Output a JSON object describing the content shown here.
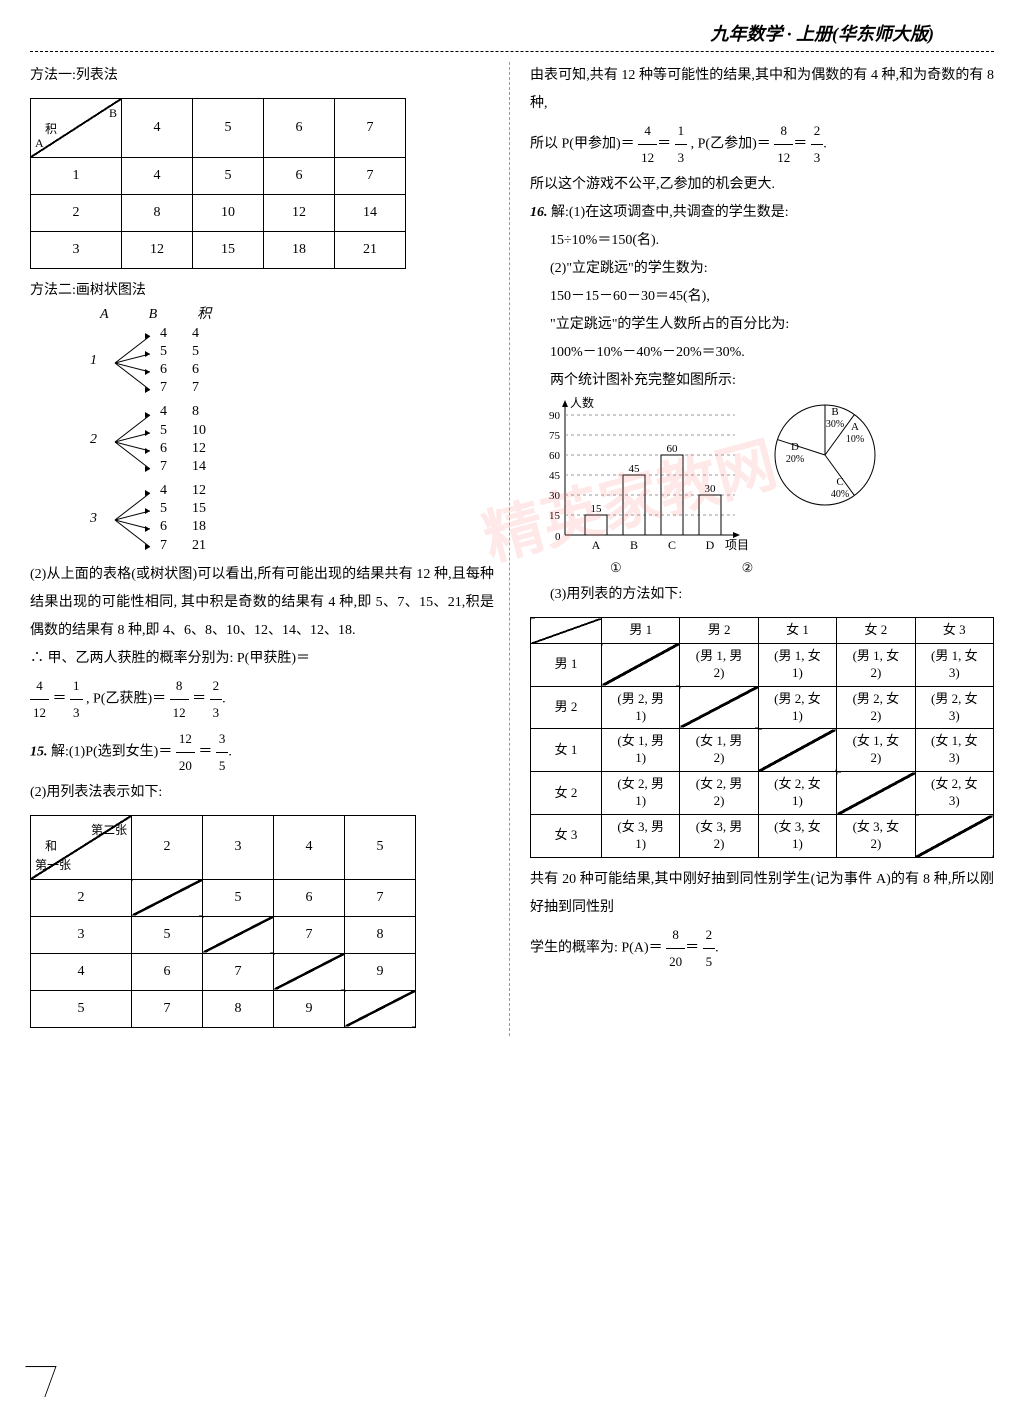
{
  "header": "九年数学 · 上册(华东师大版)",
  "left": {
    "method1_title": "方法一:列表法",
    "table1": {
      "corner": {
        "top": "B",
        "mid": "积",
        "bot": "A"
      },
      "cols": [
        "4",
        "5",
        "6",
        "7"
      ],
      "rows": [
        {
          "h": "1",
          "v": [
            "4",
            "5",
            "6",
            "7"
          ]
        },
        {
          "h": "2",
          "v": [
            "8",
            "10",
            "12",
            "14"
          ]
        },
        {
          "h": "3",
          "v": [
            "12",
            "15",
            "18",
            "21"
          ]
        }
      ]
    },
    "method2_title": "方法二:画树状图法",
    "tree_header": {
      "a": "A",
      "b": "B",
      "p": "积"
    },
    "tree": [
      {
        "root": "1",
        "branches": [
          [
            "4",
            "4"
          ],
          [
            "5",
            "5"
          ],
          [
            "6",
            "6"
          ],
          [
            "7",
            "7"
          ]
        ]
      },
      {
        "root": "2",
        "branches": [
          [
            "4",
            "8"
          ],
          [
            "5",
            "10"
          ],
          [
            "6",
            "12"
          ],
          [
            "7",
            "14"
          ]
        ]
      },
      {
        "root": "3",
        "branches": [
          [
            "4",
            "12"
          ],
          [
            "5",
            "15"
          ],
          [
            "6",
            "18"
          ],
          [
            "7",
            "21"
          ]
        ]
      }
    ],
    "para2": "(2)从上面的表格(或树状图)可以看出,所有可能出现的结果共有 12 种,且每种结果出现的可能性相同, 其中积是奇数的结果有 4 种,即 5、7、15、21,积是偶数的结果有 8 种,即 4、6、8、10、12、14、12、18.",
    "conc_prefix": "∴ 甲、乙两人获胜的概率分别为: P(甲获胜)＝",
    "conc_suffix": ", P(乙获胜)＝",
    "frac1": {
      "n": "4",
      "d": "12"
    },
    "frac2": {
      "n": "1",
      "d": "3"
    },
    "frac3": {
      "n": "8",
      "d": "12"
    },
    "frac4": {
      "n": "2",
      "d": "3"
    },
    "q15_prefix": "解:(1)P(选到女生)＝",
    "q15_num": "15.",
    "q15_f1": {
      "n": "12",
      "d": "20"
    },
    "q15_f2": {
      "n": "3",
      "d": "5"
    },
    "q15_part2": "(2)用列表法表示如下:",
    "table2": {
      "corner": {
        "top": "第二张",
        "mid": "和",
        "bot": "第一张"
      },
      "cols": [
        "2",
        "3",
        "4",
        "5"
      ],
      "rows": [
        {
          "h": "2",
          "v": [
            "",
            "5",
            "6",
            "7"
          ]
        },
        {
          "h": "3",
          "v": [
            "5",
            "",
            "7",
            "8"
          ]
        },
        {
          "h": "4",
          "v": [
            "6",
            "7",
            "",
            "9"
          ]
        },
        {
          "h": "5",
          "v": [
            "7",
            "8",
            "9",
            ""
          ]
        }
      ]
    }
  },
  "right": {
    "p1": "由表可知,共有 12 种等可能性的结果,其中和为偶数的有 4 种,和为奇数的有 8 种,",
    "p2_prefix": "所以 P(甲参加)＝",
    "p2_mid": ", P(乙参加)＝",
    "f1": {
      "n": "4",
      "d": "12"
    },
    "f2": {
      "n": "1",
      "d": "3"
    },
    "f3": {
      "n": "8",
      "d": "12"
    },
    "f4": {
      "n": "2",
      "d": "3"
    },
    "p3": "所以这个游戏不公平,乙参加的机会更大.",
    "q16_num": "16.",
    "q16_l1": "解:(1)在这项调查中,共调查的学生数是:",
    "q16_l2": "15÷10%＝150(名).",
    "q16_l3": "(2)\"立定跳远\"的学生数为:",
    "q16_l4": "150－15－60－30＝45(名),",
    "q16_l5": "\"立定跳远\"的学生人数所占的百分比为:",
    "q16_l6": "100%－10%－40%－20%＝30%.",
    "q16_l7": "两个统计图补充完整如图所示:",
    "bar": {
      "ylabel": "人数",
      "xlabel": "项目",
      "yticks": [
        "15",
        "30",
        "45",
        "60",
        "75",
        "90"
      ],
      "cats": [
        "A",
        "B",
        "C",
        "D"
      ],
      "values": [
        15,
        45,
        60,
        30
      ],
      "labels": [
        "15",
        "45",
        "60",
        "30"
      ],
      "num": "①"
    },
    "pie": {
      "slices": [
        {
          "label": "A",
          "pct": "10%"
        },
        {
          "label": "B",
          "pct": "30%"
        },
        {
          "label": "C",
          "pct": "40%"
        },
        {
          "label": "D",
          "pct": "20%"
        }
      ],
      "num": "②"
    },
    "q16_l8": "(3)用列表的方法如下:",
    "table3": {
      "cols": [
        "男 1",
        "男 2",
        "女 1",
        "女 2",
        "女 3"
      ],
      "rows": [
        {
          "h": "男 1",
          "v": [
            "",
            "(男 1, 男 2)",
            "(男 1, 女 1)",
            "(男 1, 女 2)",
            "(男 1, 女 3)"
          ]
        },
        {
          "h": "男 2",
          "v": [
            "(男 2, 男 1)",
            "",
            "(男 2, 女 1)",
            "(男 2, 女 2)",
            "(男 2, 女 3)"
          ]
        },
        {
          "h": "女 1",
          "v": [
            "(女 1, 男 1)",
            "(女 1, 男 2)",
            "",
            "(女 1, 女 2)",
            "(女 1, 女 3)"
          ]
        },
        {
          "h": "女 2",
          "v": [
            "(女 2, 男 1)",
            "(女 2, 男 2)",
            "(女 2, 女 1)",
            "",
            "(女 2, 女 3)"
          ]
        },
        {
          "h": "女 3",
          "v": [
            "(女 3, 男 1)",
            "(女 3, 男 2)",
            "(女 3, 女 1)",
            "(女 3, 女 2)",
            ""
          ]
        }
      ]
    },
    "p_end1": "共有 20 种可能结果,其中刚好抽到同性别学生(记为事件 A)的有 8 种,所以刚好抽到同性别",
    "p_end2_prefix": "学生的概率为: P(A)＝",
    "fe1": {
      "n": "8",
      "d": "20"
    },
    "fe2": {
      "n": "2",
      "d": "5"
    }
  }
}
